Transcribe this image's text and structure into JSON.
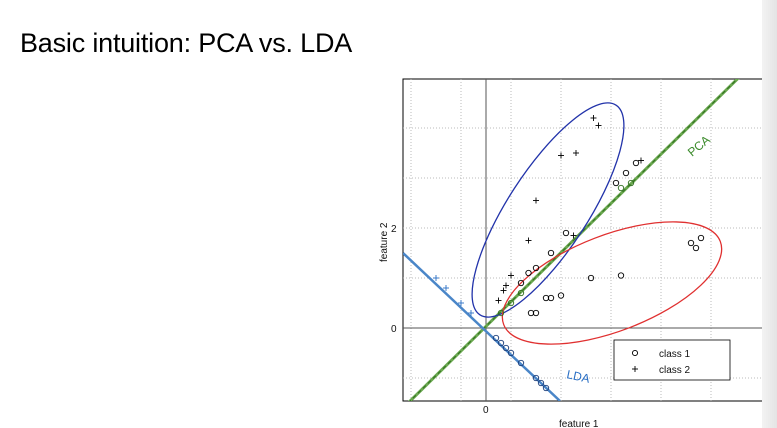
{
  "slide": {
    "title": "Basic intuition: PCA vs. LDA"
  },
  "chart_data": {
    "type": "scatter",
    "xlabel": "feature 1",
    "ylabel": "feature 2",
    "x_ticks": [
      "0"
    ],
    "y_ticks": [
      "2",
      "0"
    ],
    "grid": true,
    "legend_position": "bottom-right",
    "legend": [
      {
        "label": "class 1",
        "marker": "o"
      },
      {
        "label": "class 2",
        "marker": "+"
      }
    ],
    "annotations": [
      {
        "text": "PCA",
        "color": "#3a8a2a"
      },
      {
        "text": "LDA",
        "color": "#2a6fc4"
      }
    ],
    "colors": {
      "pca_line": "#6aa84f",
      "lda_line": "#4a86c8",
      "class2_ellipse": "#2233aa",
      "class1_ellipse": "#e03030"
    },
    "series": [
      {
        "name": "class 1",
        "marker": "o",
        "points": [
          [
            0.9,
            0.3
          ],
          [
            1.0,
            0.3
          ],
          [
            1.2,
            0.6
          ],
          [
            1.3,
            0.6
          ],
          [
            1.5,
            0.65
          ],
          [
            2.1,
            1.0
          ],
          [
            2.7,
            1.05
          ],
          [
            4.1,
            1.7
          ],
          [
            4.2,
            1.6
          ],
          [
            4.3,
            1.8
          ],
          [
            0.7,
            0.9
          ],
          [
            0.85,
            1.1
          ],
          [
            1.0,
            1.2
          ],
          [
            1.3,
            1.5
          ],
          [
            1.6,
            1.9
          ],
          [
            2.6,
            2.9
          ],
          [
            2.8,
            3.1
          ],
          [
            3.0,
            3.3
          ]
        ]
      },
      {
        "name": "class 2",
        "marker": "+",
        "points": [
          [
            0.25,
            0.55
          ],
          [
            0.35,
            0.75
          ],
          [
            0.4,
            0.85
          ],
          [
            0.5,
            1.05
          ],
          [
            0.85,
            1.75
          ],
          [
            1.0,
            2.55
          ],
          [
            1.5,
            3.45
          ],
          [
            1.8,
            3.5
          ],
          [
            2.15,
            4.2
          ],
          [
            2.25,
            4.05
          ],
          [
            1.75,
            1.85
          ],
          [
            3.1,
            3.35
          ]
        ]
      }
    ],
    "projected_pca": [
      [
        0.3,
        0.3
      ],
      [
        0.5,
        0.5
      ],
      [
        0.7,
        0.7
      ],
      [
        2.7,
        2.8
      ],
      [
        2.9,
        2.9
      ]
    ],
    "projected_lda": [
      [
        0.2,
        -0.2
      ],
      [
        0.3,
        -0.3
      ],
      [
        0.4,
        -0.4
      ],
      [
        0.5,
        -0.5
      ],
      [
        0.7,
        -0.7
      ],
      [
        1.0,
        -1.0
      ],
      [
        1.1,
        -1.1
      ],
      [
        1.2,
        -1.2
      ],
      [
        -0.3,
        0.3
      ],
      [
        -0.5,
        0.5
      ],
      [
        -0.8,
        0.8
      ],
      [
        -1.0,
        1.0
      ]
    ]
  }
}
